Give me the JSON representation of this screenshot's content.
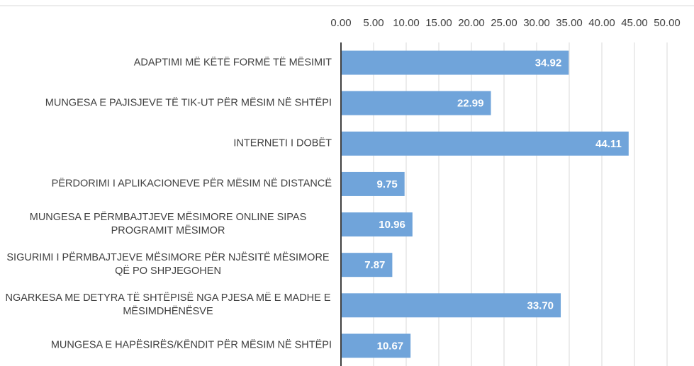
{
  "chart_data": {
    "type": "barh",
    "categories": [
      "ADAPTIMI MË KËTË FORMË TË MËSIMIT",
      "MUNGESA E PAJISJEVE TË TIK-UT PËR MËSIM NË SHTËPI",
      "INTERNETI I DOBËT",
      "PËRDORIMI I APLIKACIONEVE PËR MËSIM NË DISTANCË",
      "MUNGESA E PËRMBAJTJEVE MËSIMORE ONLINE SIPAS PROGRAMIT MËSIMOR",
      "SIGURIMI I PËRMBAJTJEVE MËSIMORE PËR NJËSITË MËSIMORE QË PO SHPJEGOHEN",
      "NGARKESA ME DETYRA TË SHTËPISË NGA PJESA MË E MADHE E MËSIMDHËNËSVE",
      "MUNGESA E HAPËSIRËS/KËNDIT PËR MËSIM NË SHTËPI"
    ],
    "values": [
      34.92,
      22.99,
      44.11,
      9.75,
      10.96,
      7.87,
      33.7,
      10.67
    ],
    "value_labels": [
      "34.92",
      "22.99",
      "44.11",
      "9.75",
      "10.96",
      "7.87",
      "33.70",
      "10.67"
    ],
    "color": "#70a4da",
    "xlim": [
      0,
      50
    ],
    "xticks": [
      {
        "value": 0,
        "label": "0.00"
      },
      {
        "value": 5,
        "label": "5.00"
      },
      {
        "value": 10,
        "label": "10.00"
      },
      {
        "value": 15,
        "label": "15.00"
      },
      {
        "value": 20,
        "label": "20.00"
      },
      {
        "value": 25,
        "label": "25.00"
      },
      {
        "value": 30,
        "label": "30.00"
      },
      {
        "value": 35,
        "label": "35.00"
      },
      {
        "value": 40,
        "label": "40.00"
      },
      {
        "value": 45,
        "label": "45.00"
      },
      {
        "value": 50,
        "label": "50.00"
      }
    ],
    "grid": true
  }
}
